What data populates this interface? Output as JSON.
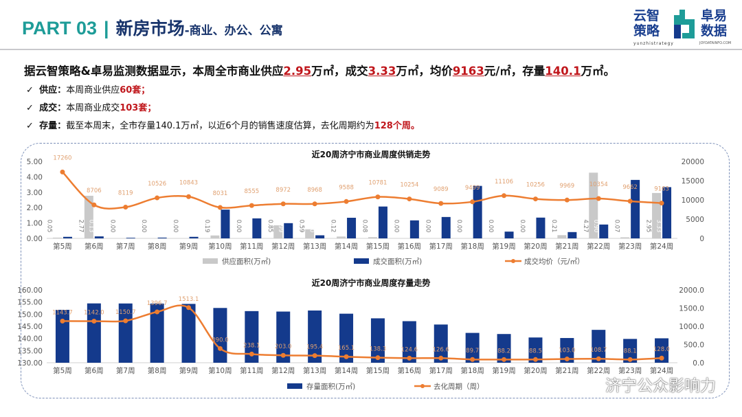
{
  "header": {
    "part": "PART 03",
    "separator": "|",
    "title": "新房市场",
    "subtitle": "-商业、办公、公寓"
  },
  "logo": {
    "left": "云智策略",
    "right": "阜易数据",
    "left_en": "yunzhistrategy",
    "right_en": "JOYDATAINFO.COM"
  },
  "lead": {
    "p1": "据云智策略&卓易监测数据显示，本周全市商业供应",
    "supply": "2.95",
    "p2": "万㎡，成交",
    "deal": "3.33",
    "p3": "万㎡，均价",
    "price": "9163",
    "p4": "元/㎡，存量",
    "stock": "140.1",
    "p5": "万㎡。"
  },
  "points": [
    {
      "label": "供应：",
      "text": "本周商业供应",
      "value": "60套；"
    },
    {
      "label": "成交：",
      "text": "本周商业成交",
      "value": "103套；"
    },
    {
      "label": "存量：",
      "text": "截至本周末，全市存量140.1万㎡，以近6个月的销售速度估算，去化周期约为",
      "value": "128个周。"
    }
  ],
  "check": "✓",
  "watermark": "济宁公众影响力",
  "colors": {
    "gray": "#c9c9c9",
    "navy": "#143a8c",
    "orange": "#ed7d31",
    "teal": "#1e9c98"
  },
  "chart_data": [
    {
      "type": "bar+line",
      "title": "近20周济宁市商业周度供销走势",
      "categories": [
        "第5周",
        "第6周",
        "第7周",
        "第8周",
        "第9周",
        "第10周",
        "第11周",
        "第12周",
        "第13周",
        "第14周",
        "第15周",
        "第16周",
        "第17周",
        "第18周",
        "第19周",
        "第20周",
        "第21周",
        "第22周",
        "第23周",
        "第24周"
      ],
      "series": [
        {
          "name": "供应面积(万㎡)",
          "axis": "left",
          "values": [
            0.05,
            2.77,
            0,
            0,
            0,
            0.19,
            0,
            0.85,
            0.59,
            0.12,
            0.08,
            0,
            0,
            0,
            0,
            0,
            0.21,
            4.27,
            0.07,
            2.95
          ]
        },
        {
          "name": "成交面积(万㎡)",
          "axis": "left",
          "values": [
            0.1,
            0.13,
            0.04,
            0.05,
            0.1,
            1.87,
            1.3,
            0.99,
            0.2,
            1.34,
            2.07,
            1.17,
            1.39,
            3.41,
            0.44,
            1.35,
            0.41,
            0.9,
            3.8,
            3.33
          ]
        },
        {
          "name": "成交均价（元/㎡）",
          "axis": "right",
          "values": [
            17260,
            8706,
            8119,
            10526,
            10843,
            8031,
            8555,
            8972,
            8968,
            9588,
            10781,
            10254,
            9089,
            9499,
            11106,
            10256,
            9969,
            10354,
            9662,
            9163
          ]
        }
      ],
      "yleft": {
        "range": [
          0,
          5
        ],
        "ticks": [
          "0.00",
          "1.00",
          "2.00",
          "3.00",
          "4.00",
          "5.00"
        ]
      },
      "yright": {
        "range": [
          0,
          20000
        ],
        "ticks": [
          "0",
          "5000",
          "10000",
          "15000",
          "20000"
        ]
      }
    },
    {
      "type": "bar+line",
      "title": "近20周济宁市商业周度存量走势",
      "categories": [
        "第5周",
        "第6周",
        "第7周",
        "第8周",
        "第9周",
        "第10周",
        "第11周",
        "第12周",
        "第13周",
        "第14周",
        "第15周",
        "第16周",
        "第17周",
        "第18周",
        "第19周",
        "第20周",
        "第21周",
        "第22周",
        "第23周",
        "第24周"
      ],
      "series": [
        {
          "name": "存量面积(万㎡)",
          "axis": "left",
          "values": [
            151.8,
            154.44,
            154.41,
            154.36,
            154.24,
            152.56,
            151.27,
            151.08,
            151.51,
            150.2,
            148.29,
            147.12,
            145.74,
            142.29,
            141.83,
            140.4,
            140.18,
            143.54,
            139.81,
            140.06
          ]
        },
        {
          "name": "去化周期（周）",
          "axis": "right",
          "values": [
            1143.7,
            1142.0,
            1150.7,
            1396.7,
            1513.1,
            390.0,
            238.1,
            203.0,
            195.4,
            165.1,
            138.3,
            124.6,
            126.6,
            89.7,
            88.2,
            88.5,
            103.0,
            108.7,
            88.1,
            128.0
          ]
        }
      ],
      "yleft": {
        "range": [
          130,
          160
        ],
        "ticks": [
          "130.00",
          "135.00",
          "140.00",
          "145.00",
          "150.00",
          "155.00",
          "160.00"
        ]
      },
      "yright": {
        "range": [
          0,
          2000
        ],
        "ticks": [
          "0.0",
          "500.0",
          "1000.0",
          "1500.0",
          "2000.0"
        ]
      }
    }
  ]
}
